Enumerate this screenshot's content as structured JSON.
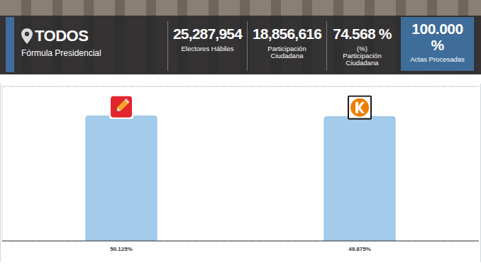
{
  "header": {
    "location": "TODOS",
    "subtitle": "Fórmula Presidencial",
    "stats": [
      {
        "value": "25,287,954",
        "label": "Electores Hábiles"
      },
      {
        "value": "18,856,616",
        "label": "Participación Ciudadana"
      },
      {
        "value": "74.568 %",
        "label": "(%) Participación Ciudadana"
      }
    ],
    "highlight": {
      "value": "100.000 %",
      "label": "Actas Procesadas"
    }
  },
  "chart_data": {
    "type": "bar",
    "categories": [
      "50.125%",
      "49.875%"
    ],
    "values": [
      50.125,
      49.875
    ],
    "color": "#a3cbea",
    "ylim": [
      0,
      62
    ],
    "yticks": [
      0,
      11.5,
      23,
      34.5,
      46,
      57.5
    ],
    "grid": true,
    "tick_labels": "x"
  }
}
